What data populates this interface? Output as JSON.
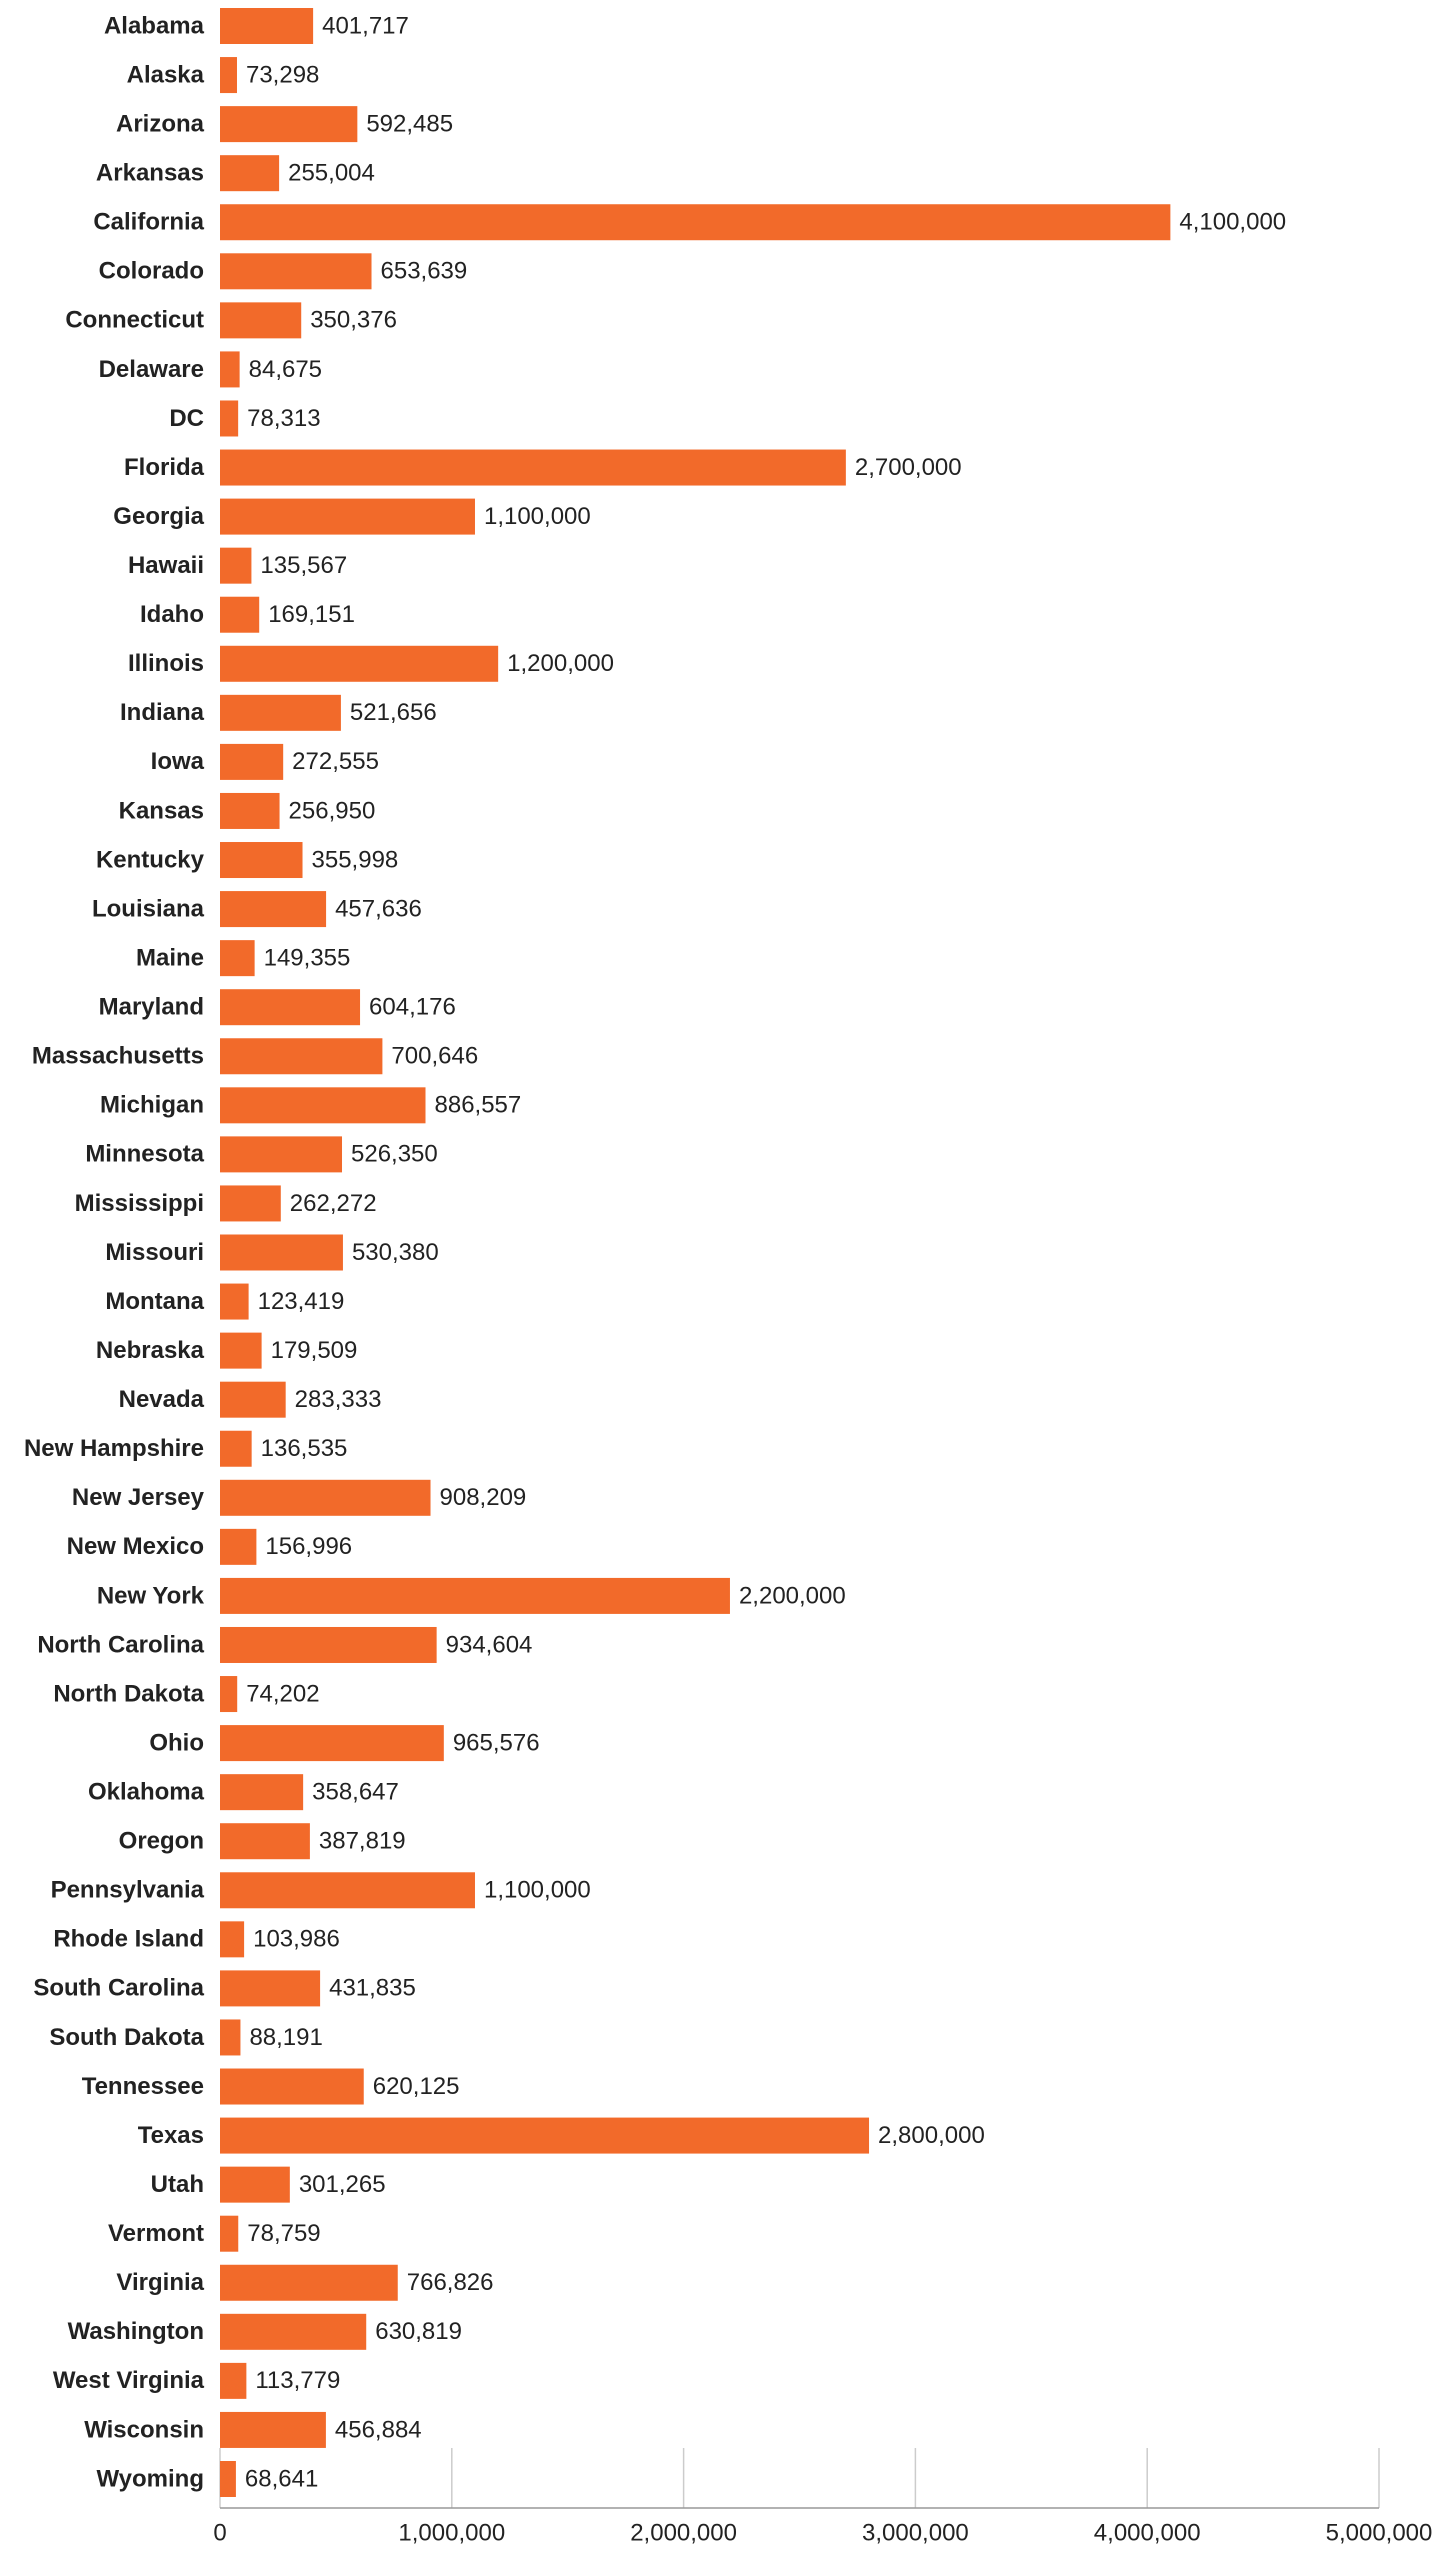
{
  "chart_data": {
    "type": "bar",
    "orientation": "horizontal",
    "color": "#f26a2a",
    "categories": [
      "Alabama",
      "Alaska",
      "Arizona",
      "Arkansas",
      "California",
      "Colorado",
      "Connecticut",
      "Delaware",
      "DC",
      "Florida",
      "Georgia",
      "Hawaii",
      "Idaho",
      "Illinois",
      "Indiana",
      "Iowa",
      "Kansas",
      "Kentucky",
      "Louisiana",
      "Maine",
      "Maryland",
      "Massachusetts",
      "Michigan",
      "Minnesota",
      "Mississippi",
      "Missouri",
      "Montana",
      "Nebraska",
      "Nevada",
      "New Hampshire",
      "New Jersey",
      "New Mexico",
      "New York",
      "North Carolina",
      "North Dakota",
      "Ohio",
      "Oklahoma",
      "Oregon",
      "Pennsylvania",
      "Rhode Island",
      "South Carolina",
      "South Dakota",
      "Tennessee",
      "Texas",
      "Utah",
      "Vermont",
      "Virginia",
      "Washington",
      "West Virginia",
      "Wisconsin",
      "Wyoming"
    ],
    "values": [
      401717,
      73298,
      592485,
      255004,
      4100000,
      653639,
      350376,
      84675,
      78313,
      2700000,
      1100000,
      135567,
      169151,
      1200000,
      521656,
      272555,
      256950,
      355998,
      457636,
      149355,
      604176,
      700646,
      886557,
      526350,
      262272,
      530380,
      123419,
      179509,
      283333,
      136535,
      908209,
      156996,
      2200000,
      934604,
      74202,
      965576,
      358647,
      387819,
      1100000,
      103986,
      431835,
      88191,
      620125,
      2800000,
      301265,
      78759,
      766826,
      630819,
      113779,
      456884,
      68641
    ],
    "value_labels": [
      "401,717",
      "73,298",
      "592,485",
      "255,004",
      "4,100,000",
      "653,639",
      "350,376",
      "84,675",
      "78,313",
      "2,700,000",
      "1,100,000",
      "135,567",
      "169,151",
      "1,200,000",
      "521,656",
      "272,555",
      "256,950",
      "355,998",
      "457,636",
      "149,355",
      "604,176",
      "700,646",
      "886,557",
      "526,350",
      "262,272",
      "530,380",
      "123,419",
      "179,509",
      "283,333",
      "136,535",
      "908,209",
      "156,996",
      "2,200,000",
      "934,604",
      "74,202",
      "965,576",
      "358,647",
      "387,819",
      "1,100,000",
      "103,986",
      "431,835",
      "88,191",
      "620,125",
      "2,800,000",
      "301,265",
      "78,759",
      "766,826",
      "630,819",
      "113,779",
      "456,884",
      "68,641"
    ],
    "xlim": [
      0,
      5000000
    ],
    "xticks": [
      0,
      {
        "value": 1000000,
        "label": "1,000,000"
      },
      {
        "value": 2000000,
        "label": "2,000,000"
      },
      {
        "value": 3000000,
        "label": "3,000,000"
      },
      {
        "value": 4000000,
        "label": "4,000,000"
      },
      {
        "value": 5000000,
        "label": "5,000,000"
      }
    ]
  }
}
